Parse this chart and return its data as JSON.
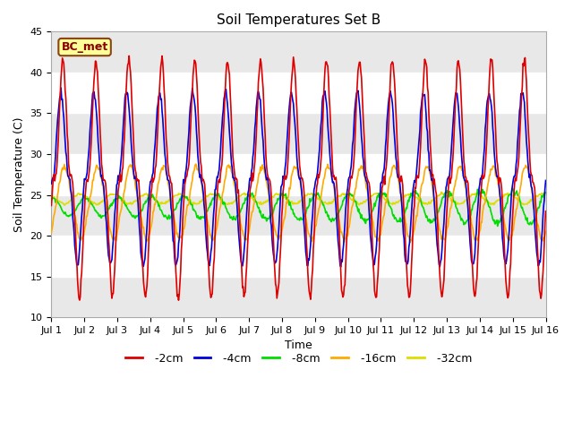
{
  "title": "Soil Temperatures Set B",
  "xlabel": "Time",
  "ylabel": "Soil Temperature (C)",
  "ylim": [
    10,
    45
  ],
  "yticks": [
    10,
    15,
    20,
    25,
    30,
    35,
    40,
    45
  ],
  "annotation": "BC_met",
  "colors": {
    "-2cm": "#dd0000",
    "-4cm": "#0000dd",
    "-8cm": "#00dd00",
    "-16cm": "#ffaa00",
    "-32cm": "#dddd00"
  },
  "legend_labels": [
    "-2cm",
    "-4cm",
    "-8cm",
    "-16cm",
    "-32cm"
  ],
  "n_days": 15,
  "points_per_day": 48,
  "fig_bg": "#ffffff",
  "ax_bg": "#ffffff"
}
